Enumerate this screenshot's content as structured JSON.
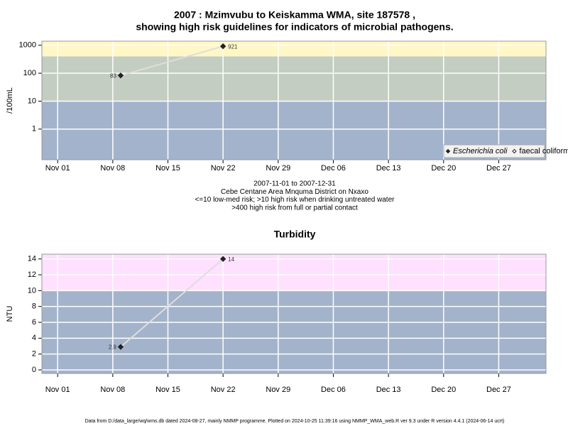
{
  "chart_data": [
    {
      "type": "line",
      "title": [
        "2007 : Mzimvubu to Keiskamma WMA, site 187578 ,",
        "showing high risk guidelines for indicators of microbial pathogens."
      ],
      "subtitle": [
        "2007-11-01 to 2007-12-31",
        "Cebe Centane Area Mnquma District on Nxaxo",
        "<=10 low-med risk; >10 high risk when drinking untreated water",
        ">400 high risk from full or partial contact"
      ],
      "ylabel": "/100mL",
      "log_scale": true,
      "grid": true,
      "legend": "lower right",
      "x": [
        "2007-11-09",
        "2007-11-22"
      ],
      "series": [
        {
          "name": "Escherichia coli",
          "color": "#222222",
          "line_color": "#dddddd",
          "marker": "filled",
          "values": [
            83,
            921
          ]
        },
        {
          "name": "faecal coliforms",
          "color": "#222222",
          "marker": "open",
          "values": [
            null,
            null
          ]
        }
      ],
      "bands": [
        {
          "ymin": null,
          "ymax": 10,
          "color": "#a3b3cb"
        },
        {
          "ymin": 10,
          "ymax": 400,
          "color": "#c3cdc1"
        },
        {
          "ymin": 400,
          "ymax": null,
          "color": "#fff7c6"
        }
      ],
      "xlim": [
        "2007-10-30",
        "2008-01-02"
      ],
      "xticks": [
        {
          "value": "2007-11-01",
          "label": "Nov 01"
        },
        {
          "value": "2007-11-08",
          "label": "Nov 08"
        },
        {
          "value": "2007-11-15",
          "label": "Nov 15"
        },
        {
          "value": "2007-11-22",
          "label": "Nov 22"
        },
        {
          "value": "2007-11-29",
          "label": "Nov 29"
        },
        {
          "value": "2007-12-06",
          "label": "Dec 06"
        },
        {
          "value": "2007-12-13",
          "label": "Dec 13"
        },
        {
          "value": "2007-12-20",
          "label": "Dec 20"
        },
        {
          "value": "2007-12-27",
          "label": "Dec 27"
        }
      ],
      "ylim": [
        0.08,
        1400
      ],
      "yticks": [
        1,
        10,
        100,
        1000
      ]
    },
    {
      "type": "line",
      "title": [
        "Turbidity"
      ],
      "ylabel": "NTU",
      "log_scale": false,
      "grid": true,
      "x": [
        "2007-11-09",
        "2007-11-22"
      ],
      "series": [
        {
          "name": "Turbidity",
          "color": "#222222",
          "line_color": "#dddddd",
          "marker": "filled",
          "values": [
            2.9,
            14
          ]
        }
      ],
      "bands": [
        {
          "ymin": null,
          "ymax": 10,
          "color": "#a3b3cb"
        },
        {
          "ymin": 10,
          "ymax": null,
          "color": "#ffe0ff"
        }
      ],
      "xlim": [
        "2007-10-30",
        "2008-01-02"
      ],
      "xticks": [
        {
          "value": "2007-11-01",
          "label": "Nov 01"
        },
        {
          "value": "2007-11-08",
          "label": "Nov 08"
        },
        {
          "value": "2007-11-15",
          "label": "Nov 15"
        },
        {
          "value": "2007-11-22",
          "label": "Nov 22"
        },
        {
          "value": "2007-11-29",
          "label": "Nov 29"
        },
        {
          "value": "2007-12-06",
          "label": "Dec 06"
        },
        {
          "value": "2007-12-13",
          "label": "Dec 13"
        },
        {
          "value": "2007-12-20",
          "label": "Dec 20"
        },
        {
          "value": "2007-12-27",
          "label": "Dec 27"
        }
      ],
      "ylim": [
        -0.45,
        14.6
      ],
      "yticks": [
        0,
        2,
        4,
        6,
        8,
        10,
        12,
        14
      ]
    }
  ],
  "footer": "Data from D:/data_large/wq/wms.db dated 2024-08-27, mainly NMMP programme. Plotted on 2024-10-25 11:39:16 using NMMP_WMA_web.R ver 9.3 under R version 4.4.1 (2024-06-14 ucrt)"
}
